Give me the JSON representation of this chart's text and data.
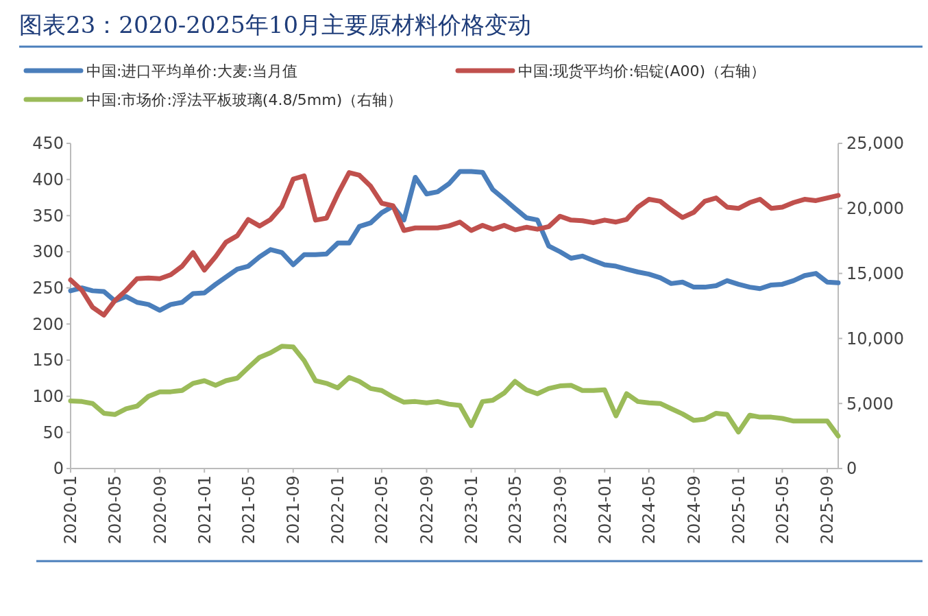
{
  "chart_data": {
    "type": "line",
    "title": "图表23：2020-2025年10月主要原材料价格变动",
    "x": [
      "2020-01",
      "2020-02",
      "2020-03",
      "2020-04",
      "2020-05",
      "2020-06",
      "2020-07",
      "2020-08",
      "2020-09",
      "2020-10",
      "2020-11",
      "2020-12",
      "2021-01",
      "2021-02",
      "2021-03",
      "2021-04",
      "2021-05",
      "2021-06",
      "2021-07",
      "2021-08",
      "2021-09",
      "2021-10",
      "2021-11",
      "2021-12",
      "2022-01",
      "2022-02",
      "2022-03",
      "2022-04",
      "2022-05",
      "2022-06",
      "2022-07",
      "2022-08",
      "2022-09",
      "2022-10",
      "2022-11",
      "2022-12",
      "2023-01",
      "2023-02",
      "2023-03",
      "2023-04",
      "2023-05",
      "2023-06",
      "2023-07",
      "2023-08",
      "2023-09",
      "2023-10",
      "2023-11",
      "2023-12",
      "2024-01",
      "2024-02",
      "2024-03",
      "2024-04",
      "2024-05",
      "2024-06",
      "2024-07",
      "2024-08",
      "2024-09",
      "2024-10",
      "2024-11",
      "2024-12",
      "2025-01",
      "2025-02",
      "2025-03",
      "2025-04",
      "2025-05",
      "2025-06",
      "2025-07",
      "2025-08",
      "2025-09",
      "2025-10"
    ],
    "series": [
      {
        "name": "中国:进口平均单价:大麦:当月值",
        "color": "#4a7ebb",
        "values": [
          246,
          250,
          246,
          245,
          232,
          238,
          230,
          227,
          219,
          227,
          230,
          242,
          243,
          255,
          265,
          276,
          280,
          293,
          303,
          299,
          282,
          296,
          296,
          297,
          312,
          312,
          335,
          340,
          354,
          363,
          344,
          403,
          380,
          383,
          394,
          411,
          411,
          410,
          386,
          373,
          360,
          347,
          344,
          308,
          300,
          291,
          294,
          288,
          282,
          280,
          276,
          272,
          269,
          264,
          256,
          258,
          251,
          251,
          253,
          260,
          255,
          251,
          249,
          254,
          255,
          260,
          267,
          270,
          258,
          257
        ]
      },
      {
        "name": "中国:现货平均价:铝锭(A00)（右轴）",
        "color": "#c0504d",
        "axis": "y2",
        "values": [
          14500,
          13700,
          12400,
          11800,
          12900,
          13700,
          14600,
          14650,
          14600,
          14900,
          15550,
          16600,
          15250,
          16300,
          17400,
          17900,
          19150,
          18650,
          19150,
          20150,
          22250,
          22500,
          19100,
          19250,
          21100,
          22750,
          22550,
          21700,
          20400,
          20200,
          18300,
          18500,
          18500,
          18500,
          18650,
          18950,
          18300,
          18700,
          18400,
          18700,
          18350,
          18550,
          18400,
          18600,
          19400,
          19100,
          19050,
          18900,
          19100,
          18950,
          19150,
          20100,
          20700,
          20550,
          19900,
          19300,
          19700,
          20550,
          20800,
          20100,
          20000,
          20450,
          20700,
          20000,
          20100,
          20450,
          20700,
          20600,
          20800,
          21000
        ]
      },
      {
        "name": "中国:市场价:浮法平板玻璃(4.8/5mm)（右轴）",
        "color": "#9bbb59",
        "axis": "y2",
        "values": [
          5200,
          5150,
          5000,
          4250,
          4150,
          4600,
          4800,
          5550,
          5900,
          5900,
          6000,
          6550,
          6750,
          6400,
          6750,
          6950,
          7750,
          8550,
          8900,
          9400,
          9350,
          8300,
          6750,
          6550,
          6200,
          7000,
          6700,
          6150,
          6000,
          5500,
          5100,
          5150,
          5050,
          5150,
          4950,
          4850,
          3300,
          5150,
          5250,
          5800,
          6700,
          6050,
          5750,
          6150,
          6350,
          6400,
          6000,
          6000,
          6050,
          4050,
          5750,
          5150,
          5050,
          5000,
          4600,
          4200,
          3700,
          3800,
          4250,
          4150,
          2800,
          4100,
          3950,
          3950,
          3850,
          3650,
          3650,
          3650,
          3650,
          2500
        ]
      }
    ],
    "xlim": [
      "2020-01",
      "2025-10"
    ],
    "xticks": [
      "2020-01",
      "2020-05",
      "2020-09",
      "2021-01",
      "2021-05",
      "2021-09",
      "2022-01",
      "2022-05",
      "2022-09",
      "2023-01",
      "2023-05",
      "2023-09",
      "2024-01",
      "2024-05",
      "2024-09",
      "2025-01",
      "2025-05",
      "2025-09"
    ],
    "ylim": [
      0,
      450
    ],
    "yticks": [
      0,
      50,
      100,
      150,
      200,
      250,
      300,
      350,
      400,
      450
    ],
    "y2lim": [
      0,
      25000
    ],
    "y2ticks": [
      {
        "value": 0,
        "label": "0"
      },
      {
        "value": 5000,
        "label": "5,000"
      },
      {
        "value": 10000,
        "label": "10,000"
      },
      {
        "value": 15000,
        "label": "15,000"
      },
      {
        "value": 20000,
        "label": "20,000"
      },
      {
        "value": 25000,
        "label": "25,000"
      }
    ],
    "legend": "top",
    "grid": false,
    "marker": "none",
    "line_style": "solid"
  }
}
